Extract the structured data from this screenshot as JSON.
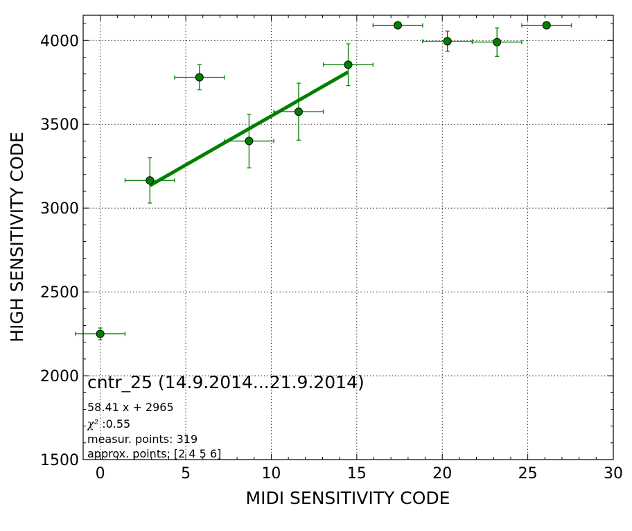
{
  "chart_data": {
    "type": "scatter",
    "title": "",
    "xlabel": "MIDI SENSITIVITY CODE",
    "ylabel": "HIGH SENSITIVITY CODE",
    "xlim": [
      -1,
      30
    ],
    "ylim": [
      1500,
      4150
    ],
    "xticks": [
      0,
      5,
      10,
      15,
      20,
      25,
      30
    ],
    "yticks": [
      1500,
      2000,
      2500,
      3000,
      3500,
      4000
    ],
    "grid": true,
    "color": "#008000",
    "points": [
      {
        "x": 0.0,
        "y": 2250,
        "xerr": 1.45,
        "yerr": 35
      },
      {
        "x": 2.9,
        "y": 3165,
        "xerr": 1.45,
        "yerr": 135
      },
      {
        "x": 5.8,
        "y": 3780,
        "xerr": 1.45,
        "yerr": 75
      },
      {
        "x": 8.7,
        "y": 3400,
        "xerr": 1.45,
        "yerr": 160
      },
      {
        "x": 11.6,
        "y": 3575,
        "xerr": 1.45,
        "yerr": 170
      },
      {
        "x": 14.5,
        "y": 3855,
        "xerr": 1.45,
        "yerr": 125
      },
      {
        "x": 17.4,
        "y": 4090,
        "xerr": 1.45,
        "yerr": 0
      },
      {
        "x": 20.3,
        "y": 3995,
        "xerr": 1.45,
        "yerr": 60
      },
      {
        "x": 23.2,
        "y": 3990,
        "xerr": 1.45,
        "yerr": 85
      },
      {
        "x": 26.1,
        "y": 4090,
        "xerr": 1.45,
        "yerr": 0
      }
    ],
    "fit": {
      "slope": 58.41,
      "intercept": 2965,
      "x_range": [
        2.9,
        14.5
      ]
    },
    "annotation": {
      "title": "cntr_25 (14.9.2014...21.9.2014)",
      "equation": "58.41 x + 2965",
      "chi2_symbol": "χ²",
      "chi2_value": " :0.55",
      "measur_points": "measur. points: 319",
      "approx_points": "approx. points: [2 4 5 6]"
    }
  }
}
